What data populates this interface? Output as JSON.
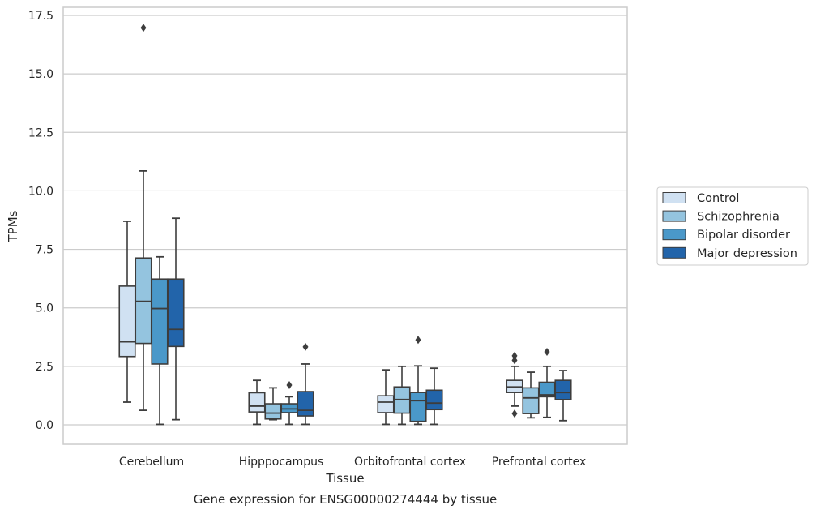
{
  "chart_data": {
    "type": "boxplot",
    "title": "Gene expression for ENSG00000274444 by tissue",
    "xlabel": "Tissue",
    "ylabel": "TPMs",
    "ylim": [
      -0.8,
      17.8
    ],
    "yticks": [
      "0.0",
      "2.5",
      "5.0",
      "7.5",
      "10.0",
      "12.5",
      "15.0",
      "17.5"
    ],
    "ytick_values": [
      0,
      2.5,
      5,
      7.5,
      10,
      12.5,
      15,
      17.5
    ],
    "grid": "horizontal",
    "legend_position": "right",
    "categories": [
      "Cerebellum",
      "Hipppocampus",
      "Orbitofrontal cortex",
      "Prefrontal cortex"
    ],
    "series": [
      {
        "name": "Control",
        "color": "#d0e1f2",
        "boxes": [
          {
            "whisker_low": 0.97,
            "q1": 2.92,
            "median": 3.55,
            "q3": 5.93,
            "whisker_high": 8.7,
            "outliers": []
          },
          {
            "whisker_low": 0.02,
            "q1": 0.55,
            "median": 0.8,
            "q3": 1.37,
            "whisker_high": 1.9,
            "outliers": []
          },
          {
            "whisker_low": 0.02,
            "q1": 0.52,
            "median": 0.97,
            "q3": 1.24,
            "whisker_high": 2.35,
            "outliers": []
          },
          {
            "whisker_low": 0.8,
            "q1": 1.38,
            "median": 1.62,
            "q3": 1.9,
            "whisker_high": 2.5,
            "outliers": [
              2.76,
              2.95,
              0.48
            ]
          }
        ]
      },
      {
        "name": "Schizophrenia",
        "color": "#94c4df",
        "boxes": [
          {
            "whisker_low": 0.62,
            "q1": 3.48,
            "median": 5.28,
            "q3": 7.13,
            "whisker_high": 10.85,
            "outliers": [
              16.97
            ]
          },
          {
            "whisker_low": 0.22,
            "q1": 0.25,
            "median": 0.5,
            "q3": 0.9,
            "whisker_high": 1.58,
            "outliers": []
          },
          {
            "whisker_low": 0.02,
            "q1": 0.5,
            "median": 1.08,
            "q3": 1.62,
            "whisker_high": 2.5,
            "outliers": []
          },
          {
            "whisker_low": 0.3,
            "q1": 0.48,
            "median": 1.15,
            "q3": 1.58,
            "whisker_high": 2.25,
            "outliers": []
          }
        ]
      },
      {
        "name": "Bipolar disorder",
        "color": "#4a98c9",
        "boxes": [
          {
            "whisker_low": 0.02,
            "q1": 2.6,
            "median": 4.97,
            "q3": 6.23,
            "whisker_high": 7.18,
            "outliers": []
          },
          {
            "whisker_low": 0.02,
            "q1": 0.52,
            "median": 0.68,
            "q3": 0.9,
            "whisker_high": 1.2,
            "outliers": [
              1.7
            ]
          },
          {
            "whisker_low": 0.02,
            "q1": 0.15,
            "median": 1.03,
            "q3": 1.38,
            "whisker_high": 2.52,
            "outliers": [
              3.63
            ]
          },
          {
            "whisker_low": 0.32,
            "q1": 1.2,
            "median": 1.28,
            "q3": 1.82,
            "whisker_high": 2.5,
            "outliers": [
              3.12
            ]
          }
        ]
      },
      {
        "name": "Major depression",
        "color": "#2264aa",
        "boxes": [
          {
            "whisker_low": 0.22,
            "q1": 3.35,
            "median": 4.08,
            "q3": 6.23,
            "whisker_high": 8.83,
            "outliers": []
          },
          {
            "whisker_low": 0.02,
            "q1": 0.38,
            "median": 0.62,
            "q3": 1.42,
            "whisker_high": 2.6,
            "outliers": [
              3.33
            ]
          },
          {
            "whisker_low": 0.02,
            "q1": 0.65,
            "median": 0.93,
            "q3": 1.48,
            "whisker_high": 2.42,
            "outliers": []
          },
          {
            "whisker_low": 0.18,
            "q1": 1.08,
            "median": 1.38,
            "q3": 1.9,
            "whisker_high": 2.32,
            "outliers": []
          }
        ]
      }
    ]
  }
}
